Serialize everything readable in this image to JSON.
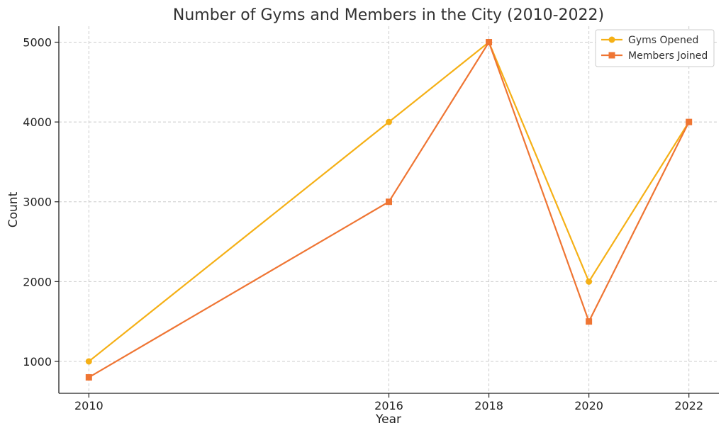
{
  "chart_data": {
    "type": "line",
    "title": "Number of Gyms and Members in the City (2010-2022)",
    "xlabel": "Year",
    "ylabel": "Count",
    "x": [
      2010,
      2016,
      2018,
      2020,
      2022
    ],
    "xlim": [
      2009.4,
      2022.6
    ],
    "ylim": [
      600,
      5200
    ],
    "xticks": [
      2010,
      2016,
      2018,
      2020,
      2022
    ],
    "yticks": [
      1000,
      2000,
      3000,
      4000,
      5000
    ],
    "grid": true,
    "legend_position": "top-right",
    "series": [
      {
        "name": "Gyms Opened",
        "values": [
          1000,
          4000,
          5000,
          2000,
          4000
        ],
        "color": "#f5b016",
        "marker": "circle"
      },
      {
        "name": "Members Joined",
        "values": [
          800,
          3000,
          5000,
          1500,
          4000
        ],
        "color": "#ef7533",
        "marker": "square"
      }
    ]
  }
}
